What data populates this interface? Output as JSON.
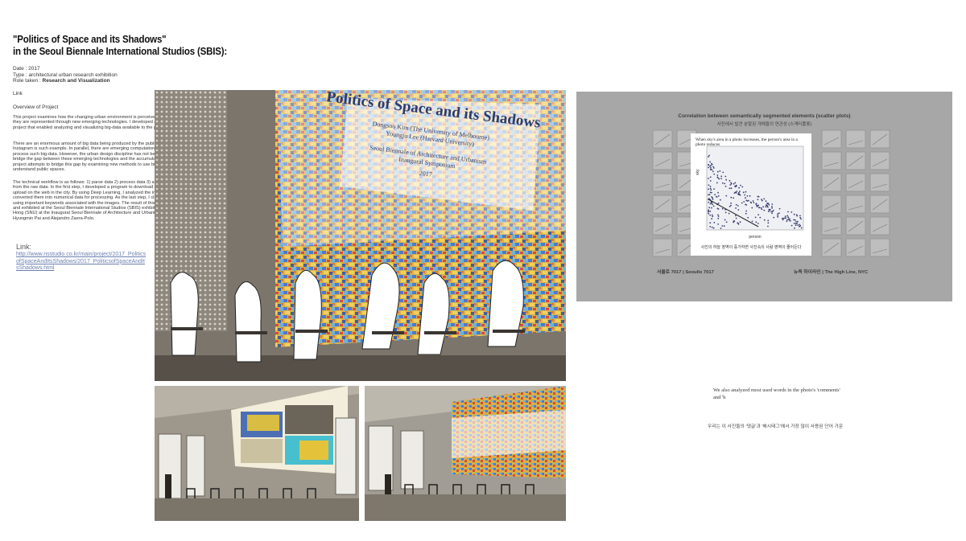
{
  "title": {
    "line1": "\"Politics of Space and its Shadows\"",
    "line2": "in the Seoul Biennale International Studios (SBIS):"
  },
  "meta": {
    "date": "Date : 2017",
    "type": "Type : architectural urban research exhibition",
    "role_prefix": "Role taken : ",
    "role_value": "Research and Visualization"
  },
  "link_small": "Link",
  "overview_heading": "Overview of Project",
  "paragraphs": {
    "p1": "This project examines how the changing urban environment is perceived by the public and how they are represented through new emerging technologies. I developed a design pipeline for the project that enabled analyzing and visualizing big-data available to the public.",
    "p2": "There are an enormous amount of big data being produced by the public, images posted on Instagram is such example. In parallel, there are emerging computational algorithms that process such big-data. However, the urban design discipline has not been able to meaningfully bridge the gap between these emerging technologies and the accumulating big-data. This project attempts to bridge this gap by examining new methods to use big data to better understand public spaces.",
    "p3": "The technical workflow is as follows: 1) parse data 2) process data 3) analyze emerging result from the raw data. In the first step, I developed a program to download all images that people upload on the web in the city. By using Deep Learning, I analyzed the image data and converted them into numerical data for processing. As the last step, I classified the results using important keywords associated with the images. The result of this research was invited and exhibited at the Seoul Biennale International Studios (SBIS) exhibition curated by John Hong (SNU) at the Inaugural Seoul Biennale of Architecture and Urbanism directed by Hyungmin Pai and Alejandro Zaera-Polo."
  },
  "link_label": "Link:",
  "link_url": "http://www.nsstudio.co.kr/main/project/2017_PoliticsofSpaceAndItsShadows/2017_PoliticsofSpaceAndItsShadows.html",
  "slide": {
    "title": "Politics of Space and its Shadows",
    "authors": "Dongsoo Kim (The University of Melbourne)\nYoungju Lee (Harvard University)",
    "venue": "Seoul Biennale of Architecture and Urbanism\nInaugural Symposium",
    "year": "2017"
  },
  "chart_panel": {
    "title": "Correlation between semantically segmented elements (scatter plots)",
    "subtitle_ko": "사진에서 발견 분할된 개체들의 연관성 (스캐터플롯)",
    "inset_title": "When sky's area in a photo increases, the person's area in a photo reduces",
    "inset_caption_ko": "사진의 하늘 영역이 증가하면 사진속의 사람 영역이 줄어든다",
    "xlabel": "person",
    "ylabel": "sky",
    "footer_left": "서울로 7017  |  Seoullo 7017",
    "footer_right": "뉴욕 하이라인  |  The High Line, NYC",
    "colors": {
      "panel": "#a7a7a7",
      "points": "#3b3f6e"
    }
  },
  "caption_en": "We also analyzed most used words in the photo's 'comments' and 'h",
  "caption_ko": "우리는 이 사진들의 '댓글'과 '해시태그'에서 가장 많이 사용된 단어 가운"
}
